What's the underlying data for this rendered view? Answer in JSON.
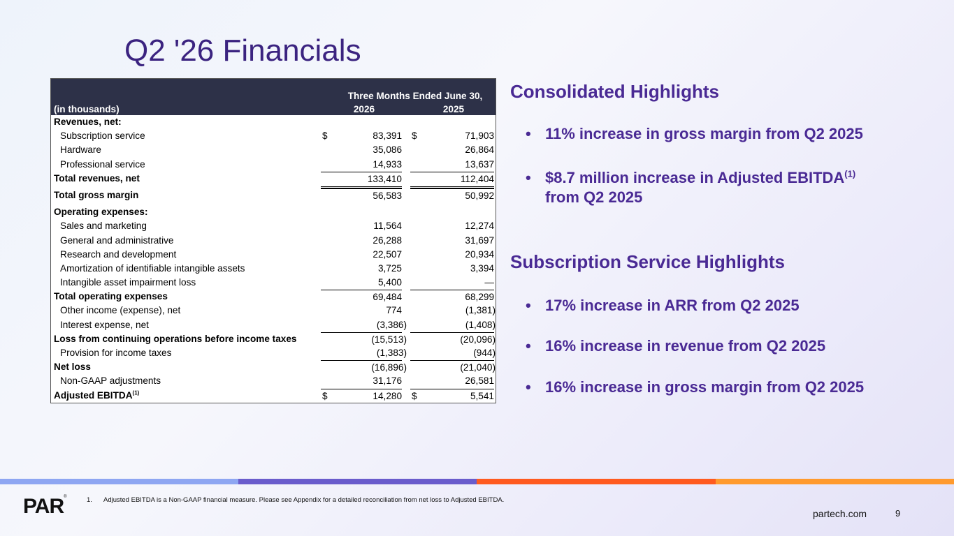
{
  "slide": {
    "title": "Q2 '26 Financials",
    "page_number": "9",
    "website": "partech.com",
    "logo_text": "PAR",
    "logo_mark": "®"
  },
  "table": {
    "period_header": "Three Months Ended June 30,",
    "units_label": "(in thousands)",
    "year1": "2026",
    "year2": "2025",
    "rows": [
      {
        "label": "Revenues, net:",
        "v1": "",
        "v2": ""
      },
      {
        "label": "Subscription service",
        "cur1": "$",
        "v1": "83,391",
        "cur2": "$",
        "v2": "71,903"
      },
      {
        "label": "Hardware",
        "v1": "35,086",
        "v2": "26,864"
      },
      {
        "label": "Professional service",
        "v1": "14,933",
        "v2": "13,637"
      },
      {
        "label": "Total revenues, net",
        "v1": "133,410",
        "v2": "112,404"
      },
      {
        "label": "Total gross margin",
        "v1": "56,583",
        "v2": "50,992"
      },
      {
        "label": "Operating expenses:",
        "v1": "",
        "v2": ""
      },
      {
        "label": "Sales and marketing",
        "v1": "11,564",
        "v2": "12,274"
      },
      {
        "label": "General and administrative",
        "v1": "26,288",
        "v2": "31,697"
      },
      {
        "label": "Research and development",
        "v1": "22,507",
        "v2": "20,934"
      },
      {
        "label": "Amortization of identifiable intangible assets",
        "v1": "3,725",
        "v2": "3,394"
      },
      {
        "label": "Intangible asset impairment loss",
        "v1": "5,400",
        "v2": "—"
      },
      {
        "label": "Total operating expenses",
        "v1": "69,484",
        "v2": "68,299"
      },
      {
        "label": "Other income (expense), net",
        "v1": "774",
        "v2": "(1,381)"
      },
      {
        "label": "Interest expense, net",
        "v1": "(3,386)",
        "v2": "(1,408)"
      },
      {
        "label": "Loss from continuing operations before income taxes",
        "v1": "(15,513)",
        "v2": "(20,096)"
      },
      {
        "label": "Provision for income taxes",
        "v1": "(1,383)",
        "v2": "(944)"
      },
      {
        "label": "Net loss",
        "v1": "(16,896)",
        "v2": "(21,040)"
      },
      {
        "label": "Non-GAAP adjustments",
        "v1": "31,176",
        "v2": "26,581"
      },
      {
        "label": "Adjusted EBITDA",
        "sup": "(1)",
        "cur1": "$",
        "v1": "14,280",
        "cur2": "$",
        "v2": "5,541"
      }
    ]
  },
  "consolidated": {
    "heading": "Consolidated Highlights",
    "bullet_glyph": "•",
    "bullet1": "11% increase in gross margin from Q2 2025",
    "bullet2_pre": "$8.7 million increase in Adjusted EBITDA",
    "bullet2_sup": "(1)",
    "bullet2_post": "from Q2 2025"
  },
  "subscription": {
    "heading": "Subscription Service Highlights",
    "bullets": [
      "17% increase in ARR from Q2 2025",
      "16% increase in revenue from Q2 2025",
      "16% increase in gross margin from Q2 2025"
    ]
  },
  "footnote": {
    "number": "1.",
    "text": "Adjusted EBITDA is a Non-GAAP financial measure. Please see Appendix for a detailed reconciliation from net loss to Adjusted EBITDA."
  },
  "colors": {
    "title": "#3b2380",
    "highlight_text": "#4a2a94",
    "table_header_bg": "#2d3148",
    "stripe_1": "#8ea6f2",
    "stripe_2": "#6a5ccc",
    "stripe_3": "#ff5a1f",
    "stripe_4": "#ff9a2e"
  }
}
